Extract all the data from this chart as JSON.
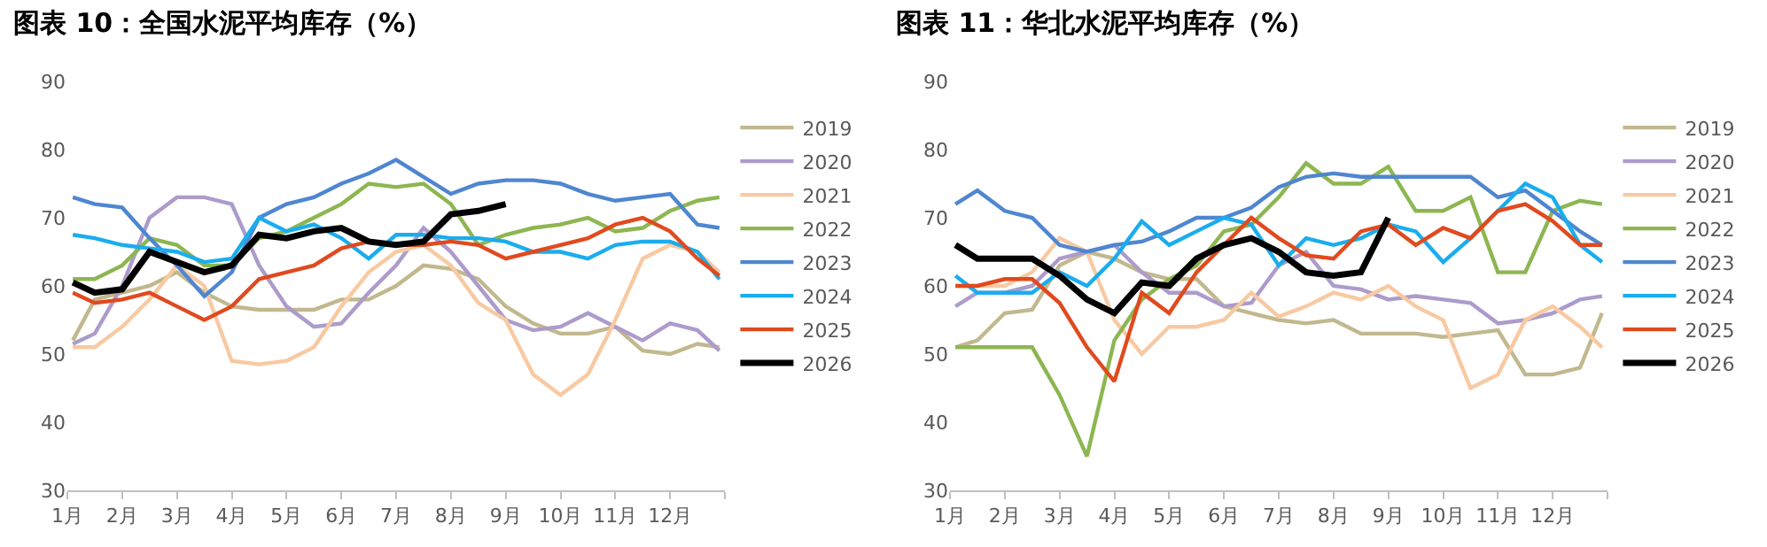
{
  "chart_data": [
    {
      "type": "line",
      "title": "图表 10：全国水泥平均库存（%）",
      "legend": "right",
      "x": [
        1.1,
        1.5,
        2,
        2.5,
        3,
        3.5,
        4,
        4.5,
        5,
        5.5,
        6,
        6.5,
        7,
        7.5,
        8,
        8.5,
        9,
        9.5,
        10,
        10.5,
        11,
        11.5,
        12,
        12.5,
        12.9
      ],
      "xlim": [
        1,
        13
      ],
      "xticks": [
        {
          "value": 1,
          "label": "1月"
        },
        {
          "value": 2,
          "label": "2月"
        },
        {
          "value": 3,
          "label": "3月"
        },
        {
          "value": 4,
          "label": "4月"
        },
        {
          "value": 5,
          "label": "5月"
        },
        {
          "value": 6,
          "label": "6月"
        },
        {
          "value": 7,
          "label": "7月"
        },
        {
          "value": 8,
          "label": "8月"
        },
        {
          "value": 9,
          "label": "9月"
        },
        {
          "value": 10,
          "label": "10月"
        },
        {
          "value": 11,
          "label": "11月"
        },
        {
          "value": 12,
          "label": "12月"
        },
        {
          "value": 13,
          "label": null
        }
      ],
      "ylim": [
        30,
        90
      ],
      "yticks": [
        30,
        40,
        50,
        60,
        70,
        80,
        90
      ],
      "series": [
        {
          "name": "2019",
          "color": "#c2b88e",
          "values": [
            52,
            58,
            59,
            60,
            62,
            59,
            57,
            56.5,
            56.5,
            56.5,
            58,
            58,
            60,
            63,
            62.5,
            61,
            57,
            54.5,
            53,
            53,
            54,
            50.5,
            50,
            51.5,
            51
          ]
        },
        {
          "name": "2020",
          "color": "#ac9bcb",
          "values": [
            51.5,
            53,
            60,
            70,
            73,
            73,
            72,
            63,
            57,
            54,
            54.5,
            59,
            63,
            68.5,
            65,
            60,
            55,
            53.5,
            54,
            56,
            54,
            52,
            54.5,
            53.5,
            50.5
          ]
        },
        {
          "name": "2021",
          "color": "#f8c9a2",
          "values": [
            51,
            51,
            54,
            58,
            63,
            60,
            49,
            48.5,
            49,
            51,
            57,
            62,
            65,
            66,
            63,
            57.5,
            55,
            47,
            44,
            47,
            55,
            64,
            66,
            65,
            62
          ]
        },
        {
          "name": "2022",
          "color": "#8db651",
          "values": [
            61,
            61,
            63,
            67,
            66,
            63,
            63,
            67,
            68,
            70,
            72,
            75,
            74.5,
            75,
            72,
            66,
            67.5,
            68.5,
            69,
            70,
            68,
            68.5,
            71,
            72.5,
            73
          ]
        },
        {
          "name": "2023",
          "color": "#4f86d0",
          "values": [
            73,
            72,
            71.5,
            67,
            63,
            58.5,
            62,
            70,
            72,
            73,
            75,
            76.5,
            78.5,
            76,
            73.5,
            75,
            75.5,
            75.5,
            75,
            73.5,
            72.5,
            73,
            73.5,
            69,
            68.5
          ]
        },
        {
          "name": "2024",
          "color": "#1aadee",
          "values": [
            67.5,
            67,
            66,
            65.5,
            65,
            63.5,
            64,
            70,
            68,
            69,
            67,
            64,
            67.5,
            67.5,
            67,
            67,
            66.5,
            65,
            65,
            64,
            66,
            66.5,
            66.5,
            65,
            61
          ]
        },
        {
          "name": "2025",
          "color": "#e04a1e",
          "values": [
            59,
            57.5,
            58,
            59,
            57,
            55,
            57,
            61,
            62,
            63,
            65.5,
            66.5,
            66,
            66,
            66.5,
            66,
            64,
            65,
            66,
            67,
            69,
            70,
            68,
            64,
            61.5
          ]
        },
        {
          "name": "2026",
          "color": "#000000",
          "values": [
            60.5,
            59,
            59.5,
            65,
            63.5,
            62,
            63,
            67.5,
            67,
            68,
            68.5,
            66.5,
            66,
            66.5,
            70.5,
            71,
            72,
            null,
            null,
            null,
            null,
            null,
            null,
            null,
            null
          ]
        }
      ]
    },
    {
      "type": "line",
      "title": "图表 11：华北水泥平均库存（%）",
      "legend": "right",
      "x": [
        1.1,
        1.5,
        2,
        2.5,
        3,
        3.5,
        4,
        4.5,
        5,
        5.5,
        6,
        6.5,
        7,
        7.5,
        8,
        8.5,
        9,
        9.5,
        10,
        10.5,
        11,
        11.5,
        12,
        12.5,
        12.9
      ],
      "xlim": [
        1,
        13
      ],
      "xticks": [
        {
          "value": 1,
          "label": "1月"
        },
        {
          "value": 2,
          "label": "2月"
        },
        {
          "value": 3,
          "label": "3月"
        },
        {
          "value": 4,
          "label": "4月"
        },
        {
          "value": 5,
          "label": "5月"
        },
        {
          "value": 6,
          "label": "6月"
        },
        {
          "value": 7,
          "label": "7月"
        },
        {
          "value": 8,
          "label": "8月"
        },
        {
          "value": 9,
          "label": "9月"
        },
        {
          "value": 10,
          "label": "10月"
        },
        {
          "value": 11,
          "label": "11月"
        },
        {
          "value": 12,
          "label": "12月"
        },
        {
          "value": 13,
          "label": null
        }
      ],
      "ylim": [
        30,
        90
      ],
      "yticks": [
        30,
        40,
        50,
        60,
        70,
        80,
        90
      ],
      "series": [
        {
          "name": "2019",
          "color": "#c2b88e",
          "values": [
            51,
            52,
            56,
            56.5,
            63,
            65,
            64,
            62,
            61,
            61,
            57,
            56,
            55,
            54.5,
            55,
            53,
            53,
            53,
            52.5,
            53,
            53.5,
            47,
            47,
            48,
            56
          ]
        },
        {
          "name": "2020",
          "color": "#ac9bcb",
          "values": [
            57,
            59,
            59,
            60,
            64,
            65,
            66,
            62,
            59,
            59,
            57,
            57.5,
            63,
            65,
            60,
            59.5,
            58,
            58.5,
            58,
            57.5,
            54.5,
            55,
            56,
            58,
            58.5
          ]
        },
        {
          "name": "2021",
          "color": "#f8c9a2",
          "values": [
            60,
            60,
            60,
            62,
            67,
            65,
            55,
            50,
            54,
            54,
            55,
            59,
            55.5,
            57,
            59,
            58,
            60,
            57,
            55,
            45,
            47,
            55,
            57,
            54,
            51
          ]
        },
        {
          "name": "2022",
          "color": "#8db651",
          "values": [
            51,
            51,
            51,
            51,
            44,
            35,
            52,
            58,
            61,
            63,
            68,
            69,
            73,
            78,
            75,
            75,
            77.5,
            71,
            71,
            73,
            62,
            62,
            71,
            72.5,
            72
          ]
        },
        {
          "name": "2023",
          "color": "#4f86d0",
          "values": [
            72,
            74,
            71,
            70,
            66,
            65,
            66,
            66.5,
            68,
            70,
            70,
            71.5,
            74.5,
            76,
            76.5,
            76,
            76,
            76,
            76,
            76,
            73,
            74,
            71,
            68,
            66
          ]
        },
        {
          "name": "2024",
          "color": "#1aadee",
          "values": [
            61.5,
            59,
            59,
            59,
            62,
            60,
            64,
            69.5,
            66,
            68,
            70,
            69,
            63,
            67,
            66,
            67,
            69,
            68,
            63.5,
            67,
            71,
            75,
            73,
            66,
            63.5
          ]
        },
        {
          "name": "2025",
          "color": "#e04a1e",
          "values": [
            60,
            60,
            61,
            61,
            57.5,
            51,
            46,
            59,
            56,
            62,
            66,
            70,
            67,
            64.5,
            64,
            68,
            69,
            66,
            68.5,
            67,
            71,
            72,
            69.5,
            66,
            66
          ]
        },
        {
          "name": "2026",
          "color": "#000000",
          "values": [
            66,
            64,
            64,
            64,
            61.5,
            58,
            56,
            60.5,
            60,
            64,
            66,
            67,
            65,
            62,
            61.5,
            62,
            70,
            null,
            null,
            null,
            null,
            null,
            null,
            null,
            null
          ]
        }
      ]
    }
  ]
}
